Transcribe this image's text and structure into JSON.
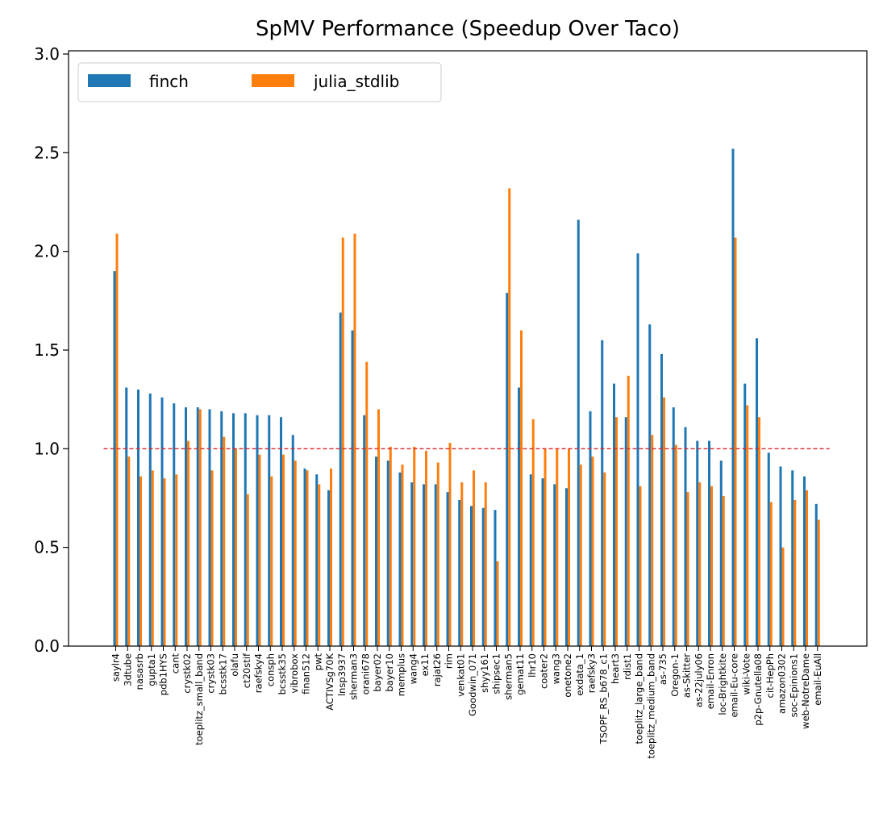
{
  "chart_data": {
    "type": "bar",
    "title": "SpMV Performance (Speedup Over Taco)",
    "xlabel": "",
    "ylabel": "",
    "ylim": [
      0,
      3.0
    ],
    "yticks": [
      "0.0",
      "0.5",
      "1.0",
      "1.5",
      "2.0",
      "2.5",
      "3.0"
    ],
    "reference_line": {
      "y": 1.0,
      "color": "#d62728",
      "style": "dashed"
    },
    "legend": {
      "placement": "top-left",
      "columns": 2
    },
    "grid": false,
    "categories": [
      "saylr4",
      "3dtube",
      "nasasrb",
      "gupta1",
      "pdb1HYS",
      "cant",
      "crystk02",
      "toeplitz_small_band",
      "crystk03",
      "bcsstk17",
      "olafu",
      "ct20stif",
      "raefsky4",
      "consph",
      "bcsstk35",
      "vibrobox",
      "finan512",
      "pwt",
      "ACTIVSg70K",
      "lnsp3937",
      "sherman3",
      "orani678",
      "bayer02",
      "bayer10",
      "memplus",
      "wang4",
      "ex11",
      "rajat26",
      "rim",
      "venkat01",
      "Goodwin_071",
      "shyy161",
      "shipsec1",
      "sherman5",
      "gemat11",
      "lhr10",
      "coater2",
      "wang3",
      "onetone2",
      "exdata_1",
      "raefsky3",
      "TSOPF_RS_b678_c1",
      "heart3",
      "rdist1",
      "toeplitz_large_band",
      "toeplitz_medium_band",
      "as-735",
      "Oregon-1",
      "as-Skitter",
      "as-22july06",
      "email-Enron",
      "loc-Brightkite",
      "email-Eu-core",
      "wiki-Vote",
      "p2p-Gnutella08",
      "cit-HepPh",
      "amazon0302",
      "soc-Epinions1",
      "web-NotreDame",
      "email-EuAll"
    ],
    "series": [
      {
        "name": "finch",
        "color": "#1f77b4",
        "values": [
          1.9,
          1.31,
          1.3,
          1.28,
          1.26,
          1.23,
          1.21,
          1.21,
          1.2,
          1.19,
          1.18,
          1.18,
          1.17,
          1.17,
          1.16,
          1.07,
          0.9,
          0.87,
          0.79,
          1.69,
          1.6,
          1.17,
          0.96,
          0.94,
          0.88,
          0.83,
          0.82,
          0.82,
          0.78,
          0.74,
          0.71,
          0.7,
          0.69,
          1.79,
          1.31,
          0.87,
          0.85,
          0.82,
          0.8,
          2.16,
          1.19,
          1.55,
          1.33,
          1.16,
          1.99,
          1.63,
          1.48,
          1.21,
          1.11,
          1.04,
          1.04,
          0.94,
          2.52,
          1.33,
          1.56,
          0.98,
          0.91,
          0.89,
          0.86,
          0.72
        ]
      },
      {
        "name": "julia_stdlib",
        "color": "#ff7f0e",
        "values": [
          2.09,
          0.96,
          0.86,
          0.89,
          0.85,
          0.87,
          1.04,
          1.2,
          0.89,
          1.06,
          1.0,
          0.77,
          0.97,
          0.86,
          0.97,
          0.94,
          0.89,
          0.82,
          0.9,
          2.07,
          2.09,
          1.44,
          1.2,
          1.01,
          0.92,
          1.01,
          0.99,
          0.93,
          1.03,
          0.83,
          0.89,
          0.83,
          0.43,
          2.32,
          1.6,
          1.15,
          1.0,
          1.0,
          1.0,
          0.92,
          0.96,
          0.88,
          1.16,
          1.37,
          0.81,
          1.07,
          1.26,
          1.02,
          0.78,
          0.83,
          0.81,
          0.76,
          2.07,
          1.22,
          1.16,
          0.73,
          0.5,
          0.74,
          0.79,
          0.64
        ]
      }
    ]
  }
}
